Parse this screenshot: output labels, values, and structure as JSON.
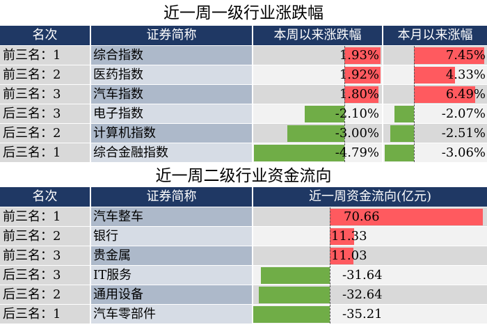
{
  "table1": {
    "title": "近一周一级行业涨跌幅",
    "headers": [
      "名次",
      "证券简称",
      "本周以来涨跌幅",
      "本月以来涨幅"
    ],
    "rows": [
      {
        "rank": "前三名：1",
        "name": "综合指数",
        "week": 1.93,
        "week_label": "1.93%",
        "month": 7.45,
        "month_label": "7.45%"
      },
      {
        "rank": "前三名：2",
        "name": "医药指数",
        "week": 1.92,
        "week_label": "1.92%",
        "month": 4.33,
        "month_label": "4.33%"
      },
      {
        "rank": "前三名：3",
        "name": "汽车指数",
        "week": 1.8,
        "week_label": "1.80%",
        "month": 6.49,
        "month_label": "6.49%"
      },
      {
        "rank": "后三名：3",
        "name": "电子指数",
        "week": -2.1,
        "week_label": "-2.10%",
        "month": -2.07,
        "month_label": "-2.07%"
      },
      {
        "rank": "后三名：2",
        "name": "计算机指数",
        "week": -3.0,
        "week_label": "-3.00%",
        "month": -2.51,
        "month_label": "-2.51%"
      },
      {
        "rank": "后三名：1",
        "name": "综合金融指数",
        "week": -4.79,
        "week_label": "-4.79%",
        "month": -3.06,
        "month_label": "-3.06%"
      }
    ]
  },
  "table2": {
    "title": "近一周二级行业资金流向",
    "headers": [
      "名次",
      "证券简称",
      "近一周资金流向(亿元)"
    ],
    "rows": [
      {
        "rank": "前三名：1",
        "name": "汽车整车",
        "flow": 70.66,
        "flow_label": "70.66"
      },
      {
        "rank": "前三名：2",
        "name": "银行",
        "flow": 11.33,
        "flow_label": "11.33"
      },
      {
        "rank": "前三名：3",
        "name": "贵金属",
        "flow": 11.03,
        "flow_label": "11.03"
      },
      {
        "rank": "后三名：3",
        "name": "IT服务",
        "flow": -31.64,
        "flow_label": "-31.64"
      },
      {
        "rank": "后三名：2",
        "name": "通用设备",
        "flow": -32.64,
        "flow_label": "-32.64"
      },
      {
        "rank": "后三名：1",
        "name": "汽车零部件",
        "flow": -35.21,
        "flow_label": "-35.21"
      }
    ]
  },
  "colors": {
    "header": "#1f3864",
    "positive": "#ff5a5f",
    "negative": "#70ad47",
    "name_dark": "#adb9ca",
    "name_light": "#d6dce5",
    "row_dark": "#d9d9d9",
    "row_light": "#f2f2f2"
  }
}
